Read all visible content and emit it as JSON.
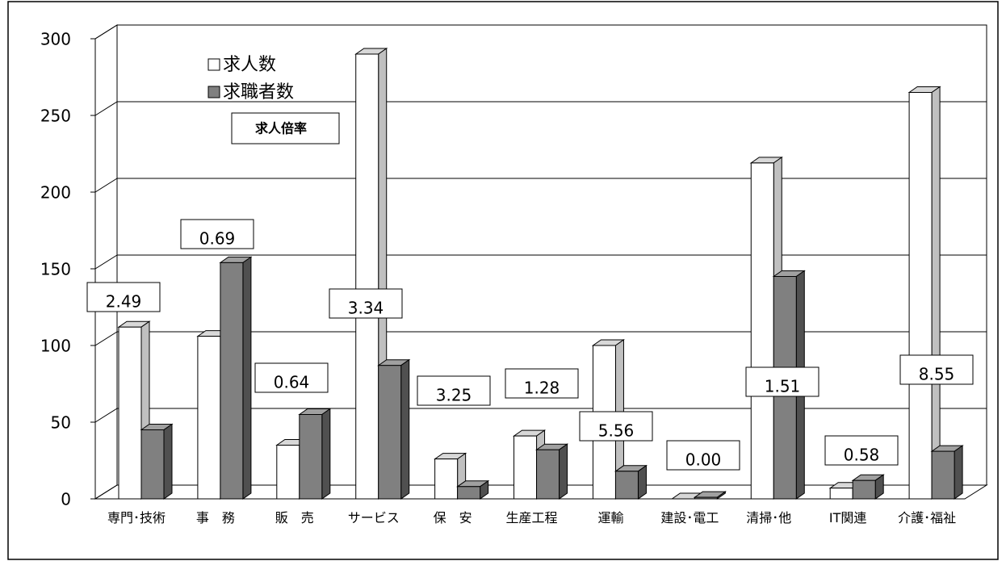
{
  "chart_data": {
    "type": "bar3d",
    "categories": [
      "専門･技術",
      "事　務",
      "販　売",
      "サービス",
      "保　安",
      "生産工程",
      "運輸",
      "建設･電工",
      "清掃･他",
      "IT関連",
      "介護･福祉"
    ],
    "series": [
      {
        "name": "求人数",
        "color": "#ffffff",
        "values": [
          112,
          106,
          35,
          290,
          26,
          41,
          100,
          0,
          219,
          7,
          265
        ]
      },
      {
        "name": "求職者数",
        "color": "#808080",
        "values": [
          45,
          154,
          55,
          87,
          8,
          32,
          18,
          1,
          145,
          12,
          31
        ]
      }
    ],
    "ratio_title": "求人倍率",
    "ratios": [
      2.49,
      0.69,
      0.64,
      3.34,
      3.25,
      1.28,
      5.56,
      {
        "value": 0,
        "label": "0.00"
      },
      1.51,
      0.58,
      8.55
    ],
    "ylim": [
      0,
      300
    ],
    "yticks": [
      0,
      50,
      100,
      150,
      200,
      250,
      300
    ],
    "grid": true
  }
}
